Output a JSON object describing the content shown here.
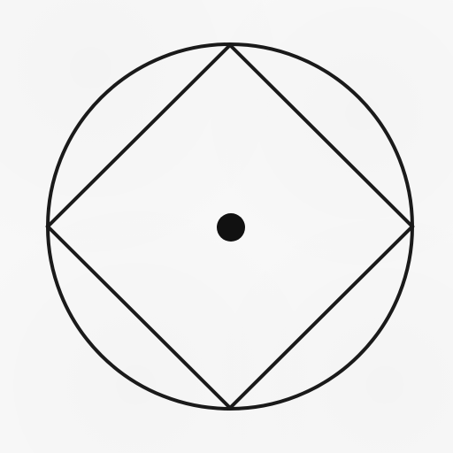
{
  "diagram": {
    "stroke_color": "#1a1a1a",
    "fill_color": "#000000",
    "background_color": "#f8f8f8"
  }
}
